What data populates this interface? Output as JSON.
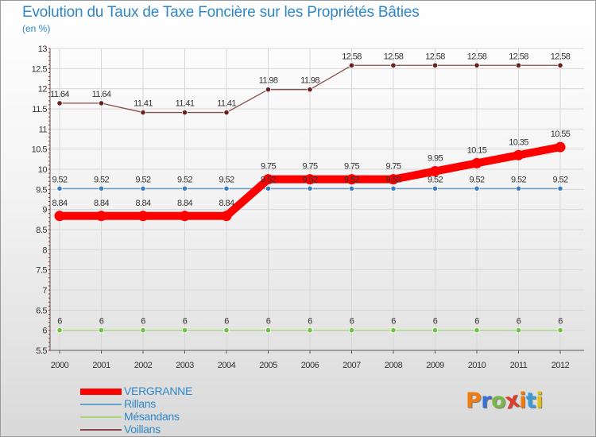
{
  "title": "Evolution du Taux de Taxe Foncière sur les Propriétés Bâties",
  "subtitle": "(en %)",
  "logo": {
    "text": "Proxiti",
    "colors": [
      "#ef7d10",
      "#3a6fd2",
      "#7ab648",
      "#e03c2c",
      "#ef7d10",
      "#3a9bd9",
      "#e0c010"
    ]
  },
  "chart_data": {
    "type": "line",
    "x": [
      "2000",
      "2001",
      "2002",
      "2003",
      "2004",
      "2005",
      "2006",
      "2007",
      "2008",
      "2009",
      "2010",
      "2011",
      "2012"
    ],
    "ylim": [
      5.5,
      13
    ],
    "yticks": [
      "5.5",
      "6",
      "6.5",
      "7",
      "7.5",
      "8",
      "8.5",
      "9",
      "9.5",
      "10",
      "10.5",
      "11",
      "11.5",
      "12",
      "12.5",
      "13"
    ],
    "grid": true,
    "legend_position": "bottom-left",
    "series": [
      {
        "name": "VERGRANNE",
        "color": "#ff0000",
        "marker_color": "#ff0000",
        "emphasis": true,
        "values": [
          8.84,
          8.84,
          8.84,
          8.84,
          8.84,
          9.75,
          9.75,
          9.75,
          9.75,
          9.95,
          10.15,
          10.35,
          10.55
        ],
        "labels": [
          "8.84",
          "8.84",
          "8.84",
          "8.84",
          "8.84",
          "9.75",
          "9.75",
          "9.75",
          "9.75",
          "9.95",
          "10.15",
          "10.35",
          "10.55"
        ]
      },
      {
        "name": "Rillans",
        "color": "#6aa0cc",
        "marker_color": "#3a7fbf",
        "values": [
          9.52,
          9.52,
          9.52,
          9.52,
          9.52,
          9.52,
          9.52,
          9.52,
          9.52,
          9.52,
          9.52,
          9.52,
          9.52
        ],
        "labels": [
          "9.52",
          "9.52",
          "9.52",
          "9.52",
          "9.52",
          "9.52",
          "9.52",
          "9.52",
          "9.52",
          "9.52",
          "9.52",
          "9.52",
          "9.52"
        ]
      },
      {
        "name": "Mésandans",
        "color": "#a8d878",
        "marker_color": "#6cc43c",
        "values": [
          6,
          6,
          6,
          6,
          6,
          6,
          6,
          6,
          6,
          6,
          6,
          6,
          6
        ],
        "labels": [
          "6",
          "6",
          "6",
          "6",
          "6",
          "6",
          "6",
          "6",
          "6",
          "6",
          "6",
          "6",
          "6"
        ]
      },
      {
        "name": "Voillans",
        "color": "#8a4a4a",
        "marker_color": "#6b1f1f",
        "values": [
          11.64,
          11.64,
          11.41,
          11.41,
          11.41,
          11.98,
          11.98,
          12.58,
          12.58,
          12.58,
          12.58,
          12.58,
          12.58
        ],
        "labels": [
          "11.64",
          "11.64",
          "11.41",
          "11.41",
          "11.41",
          "11.98",
          "11.98",
          "12.58",
          "12.58",
          "12.58",
          "12.58",
          "12.58",
          "12.58"
        ]
      }
    ]
  }
}
